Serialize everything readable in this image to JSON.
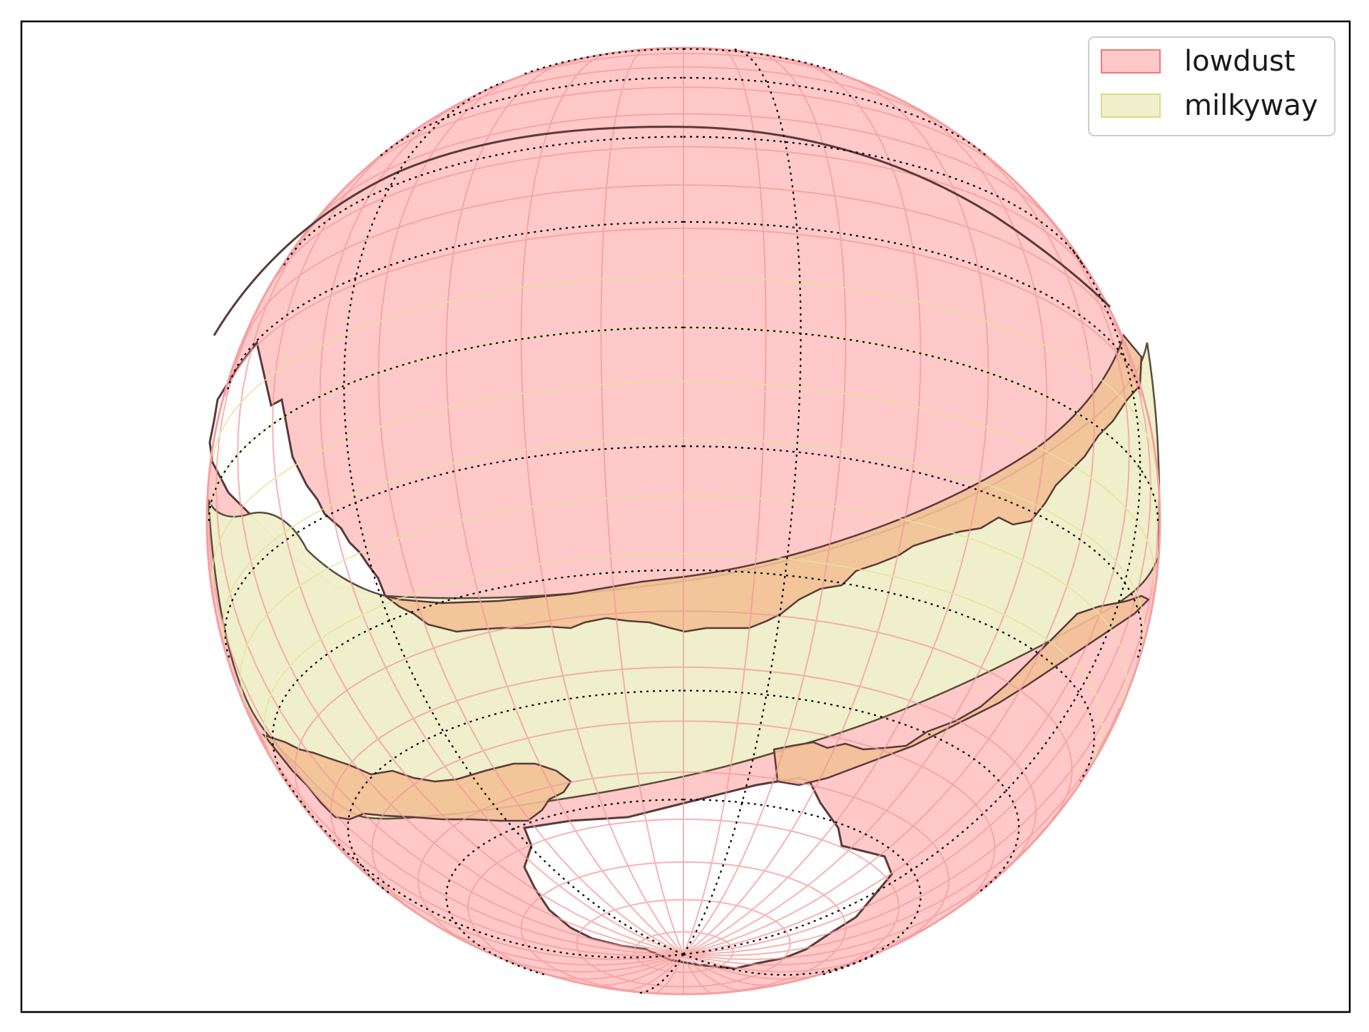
{
  "figure": {
    "type": "sky-map",
    "projection": "orthographic"
  },
  "legend": {
    "placement": "top-right",
    "items": [
      {
        "label": "lowdust",
        "color": "#ff9b9b",
        "edge": "#f47777"
      },
      {
        "label": "milkyway",
        "color": "#e7e7a6",
        "edge": "#d9d98a"
      }
    ]
  },
  "colors": {
    "lowdust_fill": "#ffc9c9",
    "lowdust_grid": "#f49a9a",
    "milkyway_fill": "#f0f0cc",
    "milkyway_grid": "#e3e39e",
    "overlap_fill": "#f2c096",
    "boundary": "#5a3a3a",
    "graticule": "#000000",
    "frame": "#000000"
  },
  "map": {
    "regions": [
      "lowdust",
      "milkyway"
    ],
    "graticule": "dotted"
  }
}
